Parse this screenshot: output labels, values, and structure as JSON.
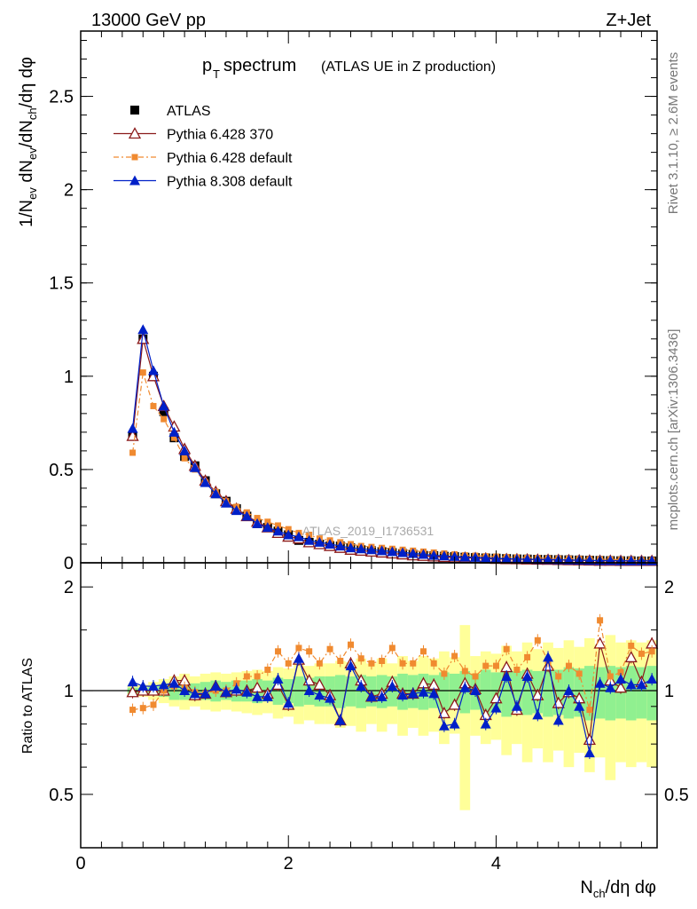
{
  "header": {
    "left": "13000 GeV pp",
    "right": "Z+Jet"
  },
  "plot": {
    "title_main": "p",
    "title_sub": "T",
    "title_word": " spectrum",
    "title_note": "(ATLAS UE in Z production)",
    "watermark": "ATLAS_2019_I1736531",
    "side_label_top": "Rivet 3.1.10, ≥ 2.6M events",
    "side_label_bottom": "mcplots.cern.ch [arXiv:1306.3436]"
  },
  "chart_data": [
    {
      "type": "scatter",
      "panel": "main",
      "ylabel": "1/N_ev dN_ev/dN_ch/dη dφ",
      "xlabel": "",
      "xlim": [
        0,
        5.55
      ],
      "ylim": [
        0,
        2.85
      ],
      "yticks": [
        "0",
        "0.5",
        "1",
        "1.5",
        "2",
        "2.5"
      ],
      "legend_position": "top-left",
      "x": [
        0.5,
        0.6,
        0.7,
        0.8,
        0.9,
        1.0,
        1.1,
        1.2,
        1.3,
        1.4,
        1.5,
        1.6,
        1.7,
        1.8,
        1.9,
        2.0,
        2.1,
        2.2,
        2.3,
        2.4,
        2.5,
        2.6,
        2.7,
        2.8,
        2.9,
        3.0,
        3.1,
        3.2,
        3.3,
        3.4,
        3.5,
        3.6,
        3.7,
        3.8,
        3.9,
        4.0,
        4.1,
        4.2,
        4.3,
        4.4,
        4.5,
        4.6,
        4.7,
        4.8,
        4.9,
        5.0,
        5.1,
        5.2,
        5.3,
        5.4,
        5.5
      ],
      "series": [
        {
          "name": "ATLAS",
          "color": "#000000",
          "marker": "square",
          "values": [
            0.68,
            1.2,
            1.0,
            0.81,
            0.67,
            0.57,
            0.52,
            0.44,
            0.37,
            0.33,
            0.29,
            0.25,
            0.21,
            0.19,
            0.17,
            0.15,
            0.12,
            0.11,
            0.1,
            0.09,
            0.09,
            0.08,
            0.07,
            0.065,
            0.06,
            0.055,
            0.05,
            0.045,
            0.04,
            0.038,
            0.035,
            0.033,
            0.03,
            0.028,
            0.026,
            0.025,
            0.023,
            0.021,
            0.02,
            0.019,
            0.018,
            0.017,
            0.016,
            0.015,
            0.014,
            0.013,
            0.012,
            0.011,
            0.011,
            0.01,
            0.01
          ]
        },
        {
          "name": "Pythia 6.428 370",
          "color": "#8b1a1a",
          "marker": "open-triangle",
          "values": [
            0.68,
            1.2,
            1.0,
            0.84,
            0.73,
            0.61,
            0.52,
            0.44,
            0.38,
            0.33,
            0.29,
            0.25,
            0.22,
            0.19,
            0.16,
            0.14,
            0.13,
            0.11,
            0.1,
            0.09,
            0.08,
            0.07,
            0.065,
            0.06,
            0.055,
            0.05,
            0.045,
            0.04,
            0.037,
            0.034,
            0.031,
            0.029,
            0.027,
            0.025,
            0.023,
            0.021,
            0.02,
            0.019,
            0.018,
            0.017,
            0.016,
            0.015,
            0.014,
            0.013,
            0.012,
            0.011,
            0.011,
            0.01,
            0.01,
            0.01,
            0.01
          ]
        },
        {
          "name": "Pythia 6.428 default",
          "color": "#f08a30",
          "marker": "dash-square",
          "values": [
            0.59,
            1.02,
            0.84,
            0.77,
            0.67,
            0.56,
            0.5,
            0.43,
            0.38,
            0.33,
            0.3,
            0.27,
            0.24,
            0.22,
            0.2,
            0.18,
            0.16,
            0.15,
            0.13,
            0.12,
            0.11,
            0.1,
            0.09,
            0.085,
            0.08,
            0.075,
            0.07,
            0.065,
            0.06,
            0.055,
            0.05,
            0.045,
            0.04,
            0.038,
            0.035,
            0.033,
            0.031,
            0.029,
            0.027,
            0.026,
            0.024,
            0.023,
            0.022,
            0.021,
            0.02,
            0.019,
            0.018,
            0.017,
            0.016,
            0.015,
            0.014
          ]
        },
        {
          "name": "Pythia 8.308 default",
          "color": "#0020c8",
          "marker": "filled-triangle",
          "values": [
            0.72,
            1.25,
            1.03,
            0.84,
            0.7,
            0.6,
            0.51,
            0.43,
            0.37,
            0.32,
            0.28,
            0.25,
            0.21,
            0.19,
            0.17,
            0.15,
            0.14,
            0.12,
            0.11,
            0.1,
            0.09,
            0.08,
            0.075,
            0.07,
            0.065,
            0.06,
            0.055,
            0.05,
            0.045,
            0.04,
            0.037,
            0.034,
            0.031,
            0.029,
            0.026,
            0.024,
            0.022,
            0.02,
            0.019,
            0.018,
            0.017,
            0.016,
            0.015,
            0.014,
            0.013,
            0.012,
            0.012,
            0.011,
            0.011,
            0.011,
            0.011
          ]
        }
      ]
    },
    {
      "type": "scatter",
      "panel": "ratio",
      "ylabel": "Ratio to ATLAS",
      "xlabel": "N_ch/dη dφ",
      "xlim": [
        0,
        5.55
      ],
      "ylim": [
        0.35,
        2.35
      ],
      "yticks": [
        "0.5",
        "1",
        "2"
      ],
      "xticks": [
        "0",
        "2",
        "4"
      ],
      "x": [
        0.5,
        0.6,
        0.7,
        0.8,
        0.9,
        1.0,
        1.1,
        1.2,
        1.3,
        1.4,
        1.5,
        1.6,
        1.7,
        1.8,
        1.9,
        2.0,
        2.1,
        2.2,
        2.3,
        2.4,
        2.5,
        2.6,
        2.7,
        2.8,
        2.9,
        3.0,
        3.1,
        3.2,
        3.3,
        3.4,
        3.5,
        3.6,
        3.7,
        3.8,
        3.9,
        4.0,
        4.1,
        4.2,
        4.3,
        4.4,
        4.5,
        4.6,
        4.7,
        4.8,
        4.9,
        5.0,
        5.1,
        5.2,
        5.3,
        5.4,
        5.5
      ],
      "band_inner": [
        0.02,
        0.02,
        0.03,
        0.04,
        0.06,
        0.06,
        0.05,
        0.06,
        0.07,
        0.06,
        0.07,
        0.07,
        0.08,
        0.07,
        0.09,
        0.08,
        0.1,
        0.09,
        0.1,
        0.1,
        0.11,
        0.1,
        0.11,
        0.1,
        0.11,
        0.1,
        0.12,
        0.11,
        0.12,
        0.11,
        0.13,
        0.12,
        0.14,
        0.12,
        0.15,
        0.13,
        0.16,
        0.14,
        0.15,
        0.14,
        0.16,
        0.15,
        0.17,
        0.16,
        0.18,
        0.17,
        0.18,
        0.17,
        0.18,
        0.17,
        0.18
      ],
      "band_outer": [
        0.04,
        0.04,
        0.06,
        0.08,
        0.1,
        0.12,
        0.1,
        0.12,
        0.13,
        0.12,
        0.13,
        0.14,
        0.15,
        0.14,
        0.17,
        0.16,
        0.2,
        0.18,
        0.2,
        0.2,
        0.22,
        0.21,
        0.24,
        0.2,
        0.24,
        0.2,
        0.26,
        0.22,
        0.26,
        0.24,
        0.3,
        0.25,
        0.55,
        0.26,
        0.3,
        0.28,
        0.35,
        0.3,
        0.38,
        0.32,
        0.38,
        0.33,
        0.4,
        0.34,
        0.42,
        0.36,
        0.45,
        0.38,
        0.4,
        0.38,
        0.4
      ],
      "series": [
        {
          "name": "Pythia 6.428 370",
          "color": "#8b1a1a",
          "marker": "open-triangle",
          "values": [
            0.99,
            1.0,
            1.0,
            1.0,
            1.07,
            1.07,
            0.97,
            0.98,
            1.03,
            0.99,
            1.0,
            1.0,
            1.02,
            0.98,
            1.04,
            0.91,
            1.23,
            1.07,
            1.04,
            0.97,
            0.82,
            1.2,
            1.07,
            0.96,
            0.98,
            1.06,
            0.98,
            0.98,
            1.05,
            1.04,
            0.86,
            0.91,
            1.05,
            1.01,
            0.85,
            0.95,
            1.17,
            0.88,
            1.12,
            0.97,
            1.18,
            0.92,
            0.99,
            0.95,
            0.72,
            1.37,
            1.07,
            1.02,
            1.25,
            1.06,
            1.37
          ]
        },
        {
          "name": "Pythia 6.428 default",
          "color": "#f08a30",
          "marker": "dash-square",
          "values": [
            0.88,
            0.89,
            0.91,
            1.0,
            1.03,
            1.02,
            0.99,
            0.98,
            1.0,
            1.0,
            1.05,
            1.1,
            1.1,
            1.15,
            1.3,
            1.2,
            1.33,
            1.3,
            1.2,
            1.32,
            1.22,
            1.36,
            1.24,
            1.2,
            1.22,
            1.33,
            1.2,
            1.2,
            1.3,
            1.2,
            1.12,
            1.26,
            1.14,
            1.1,
            1.18,
            1.18,
            1.32,
            1.15,
            1.25,
            1.4,
            1.22,
            1.1,
            1.18,
            1.12,
            0.88,
            1.6,
            1.1,
            1.13,
            1.35,
            1.28,
            1.3
          ]
        },
        {
          "name": "Pythia 8.308 default",
          "color": "#0020c8",
          "marker": "filled-triangle",
          "values": [
            1.06,
            1.03,
            1.03,
            1.04,
            1.05,
            1.0,
            0.98,
            0.98,
            1.03,
            0.99,
            1.01,
            0.99,
            0.96,
            0.96,
            1.08,
            0.92,
            1.24,
            1.0,
            0.97,
            0.95,
            0.82,
            1.18,
            1.03,
            0.96,
            0.96,
            1.03,
            0.97,
            0.98,
            0.99,
            0.98,
            0.79,
            0.8,
            1.02,
            1.0,
            0.8,
            0.89,
            1.1,
            0.9,
            1.1,
            0.85,
            1.25,
            0.82,
            1.0,
            0.9,
            0.66,
            1.05,
            1.02,
            1.08,
            1.04,
            1.04,
            1.08
          ]
        }
      ]
    }
  ]
}
